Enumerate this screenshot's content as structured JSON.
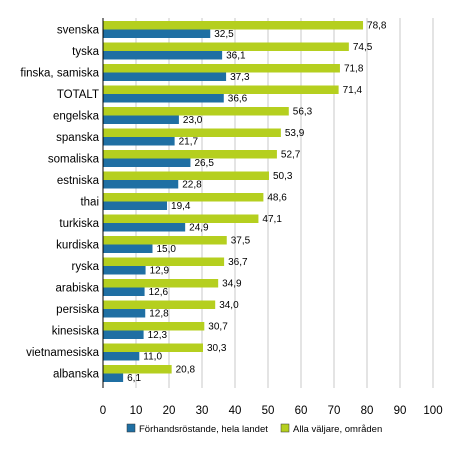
{
  "chart_data": {
    "type": "bar",
    "orientation": "horizontal",
    "categories": [
      "svenska",
      "tyska",
      "finska, samiska",
      "TOTALT",
      "engelska",
      "spanska",
      "somaliska",
      "estniska",
      "thai",
      "turkiska",
      "kurdiska",
      "ryska",
      "arabiska",
      "persiska",
      "kinesiska",
      "vietnamesiska",
      "albanska"
    ],
    "series": [
      {
        "name": "Alla väljare, områden",
        "color": "#b5cf1f",
        "values": [
          78.8,
          74.5,
          71.8,
          71.4,
          56.3,
          53.9,
          52.7,
          50.3,
          48.6,
          47.1,
          37.5,
          36.7,
          34.9,
          34.0,
          30.7,
          30.3,
          20.8
        ],
        "labels": [
          "78,8",
          "74,5",
          "71,8",
          "71,4",
          "56,3",
          "53,9",
          "52,7",
          "50,3",
          "48,6",
          "47,1",
          "37,5",
          "36,7",
          "34,9",
          "34,0",
          "30,7",
          "30,3",
          "20,8"
        ]
      },
      {
        "name": "Förhandsröstande, hela landet",
        "color": "#1f6fa3",
        "values": [
          32.5,
          36.1,
          37.3,
          36.6,
          23.0,
          21.7,
          26.5,
          22.8,
          19.4,
          24.9,
          15.0,
          12.9,
          12.6,
          12.8,
          12.3,
          11.0,
          6.1
        ],
        "labels": [
          "32,5",
          "36,1",
          "37,3",
          "36,6",
          "23,0",
          "21,7",
          "26,5",
          "22,8",
          "19,4",
          "24,9",
          "15,0",
          "12,9",
          "12,6",
          "12,8",
          "12,3",
          "11,0",
          "6,1"
        ]
      }
    ],
    "xlim": [
      0,
      100
    ],
    "xticks": [
      0,
      10,
      20,
      30,
      40,
      50,
      60,
      70,
      80,
      90,
      100
    ],
    "grid": true,
    "legend": {
      "position": "bottom",
      "items": [
        {
          "label": "Förhandsröstande, hela landet",
          "color": "#1f6fa3"
        },
        {
          "label": "Alla väljare, områden",
          "color": "#b5cf1f"
        }
      ]
    }
  }
}
